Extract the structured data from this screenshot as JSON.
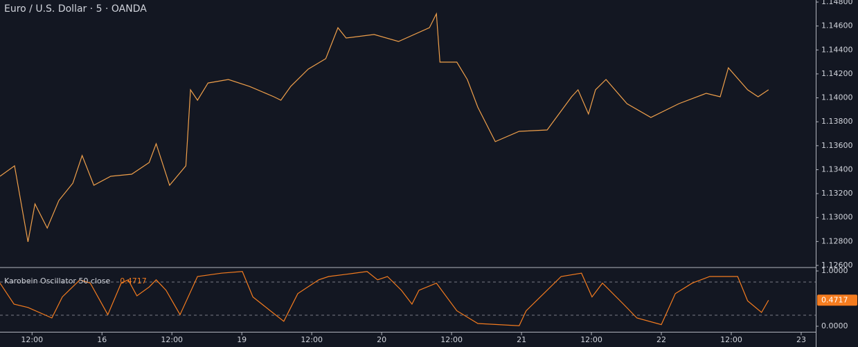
{
  "chart_data": [
    {
      "type": "line",
      "title": "Euro / U.S. Dollar · 5 · OANDA",
      "series": [
        {
          "name": null,
          "color": "#f0a04b",
          "x": [
            -17.5,
            -15,
            -12.7,
            -11.5,
            -9.4,
            -7.4,
            -5,
            -3.4,
            -1.4,
            1.5,
            5.1,
            8.1,
            9.3,
            11.6,
            14.4,
            15.2,
            16.4,
            18.2,
            21.7,
            25.3,
            29.5,
            30.7,
            32.4,
            35.4,
            38.4,
            40.5,
            41.9,
            46.7,
            50.9,
            56.2,
            57.4,
            58,
            60.9,
            62.7,
            64.5,
            67.5,
            71.6,
            76.4,
            80.6,
            81.7,
            83.5,
            84.7,
            86.5,
            90.1,
            94.2,
            99,
            103.7,
            106.1,
            107.5,
            110.8,
            112.6,
            114.4
          ],
          "values": [
            1.13345,
            1.13432,
            1.12797,
            1.13114,
            1.12912,
            1.13143,
            1.13287,
            1.13518,
            1.1327,
            1.13345,
            1.13362,
            1.1346,
            1.13616,
            1.1327,
            1.13432,
            1.14067,
            1.1398,
            1.14124,
            1.14153,
            1.14096,
            1.14009,
            1.1398,
            1.14096,
            1.1424,
            1.14327,
            1.14586,
            1.145,
            1.14529,
            1.14471,
            1.14586,
            1.14702,
            1.14298,
            1.14298,
            1.14153,
            1.13922,
            1.13634,
            1.1372,
            1.13732,
            1.14009,
            1.14067,
            1.13865,
            1.14067,
            1.14153,
            1.13951,
            1.13836,
            1.13951,
            1.14038,
            1.14009,
            1.14251,
            1.14067,
            1.14009,
            1.14067
          ]
        }
      ],
      "xlim": [
        -17.5,
        122.5
      ],
      "xticks": [
        {
          "value": -12,
          "label": "12:00"
        },
        {
          "value": 0,
          "label": "16"
        },
        {
          "value": 12,
          "label": "12:00"
        },
        {
          "value": 24,
          "label": "19"
        },
        {
          "value": 36,
          "label": "12:00"
        },
        {
          "value": 48,
          "label": "20"
        },
        {
          "value": 60,
          "label": "12:00"
        },
        {
          "value": 72,
          "label": "21"
        },
        {
          "value": 84,
          "label": "12:00"
        },
        {
          "value": 96,
          "label": "22"
        },
        {
          "value": 108,
          "label": "12:00"
        },
        {
          "value": 120,
          "label": "23"
        }
      ],
      "ylim": [
        1.126,
        1.148
      ],
      "yticks": [
        {
          "value": 1.126,
          "label": "1.12600"
        },
        {
          "value": 1.128,
          "label": "1.12800"
        },
        {
          "value": 1.13,
          "label": "1.13000"
        },
        {
          "value": 1.132,
          "label": "1.13200"
        },
        {
          "value": 1.134,
          "label": "1.13400"
        },
        {
          "value": 1.136,
          "label": "1.13600"
        },
        {
          "value": 1.138,
          "label": "1.13800"
        },
        {
          "value": 1.14,
          "label": "1.14000"
        },
        {
          "value": 1.142,
          "label": "1.14200"
        },
        {
          "value": 1.144,
          "label": "1.14400"
        },
        {
          "value": 1.146,
          "label": "1.14600"
        },
        {
          "value": 1.148,
          "label": "1.14800"
        }
      ]
    },
    {
      "type": "line",
      "series": [
        {
          "name": "Karobein Oscillator 50 close",
          "color": "#f57c1f",
          "x": [
            -17.5,
            -15.1,
            -12.7,
            -8.6,
            -6.8,
            -3.8,
            -2,
            1,
            3.3,
            4.5,
            6,
            8.1,
            9.3,
            11,
            13.4,
            16.4,
            20.5,
            24.1,
            25.9,
            28.9,
            31.2,
            33.6,
            37.2,
            38.9,
            41.9,
            45.5,
            47.3,
            49,
            51.4,
            53.2,
            54.4,
            57.4,
            60.9,
            64.5,
            71.6,
            72.8,
            75.8,
            78.8,
            82.3,
            84.1,
            85.9,
            89.5,
            91.8,
            96,
            98.4,
            101.3,
            104.3,
            106.7,
            109.1,
            110.8,
            113.2,
            114.4
          ],
          "values": [
            0.78,
            0.4,
            0.34,
            0.15,
            0.53,
            0.84,
            0.78,
            0.21,
            0.78,
            0.84,
            0.55,
            0.71,
            0.84,
            0.65,
            0.21,
            0.9,
            0.96,
            0.99,
            0.53,
            0.28,
            0.09,
            0.59,
            0.84,
            0.9,
            0.94,
            0.99,
            0.84,
            0.9,
            0.65,
            0.4,
            0.65,
            0.78,
            0.28,
            0.05,
            0.01,
            0.28,
            0.59,
            0.9,
            0.96,
            0.53,
            0.78,
            0.4,
            0.15,
            0.03,
            0.59,
            0.78,
            0.9,
            0.9,
            0.9,
            0.46,
            0.25,
            0.4717
          ]
        }
      ],
      "levels": [
        0.8,
        0.2
      ],
      "xlim": [
        -17.5,
        122.5
      ],
      "ylim": [
        0,
        1
      ],
      "yticks": [
        {
          "value": 0,
          "label": "0.0000"
        },
        {
          "value": 1,
          "label": "1.0000"
        }
      ]
    }
  ]
}
